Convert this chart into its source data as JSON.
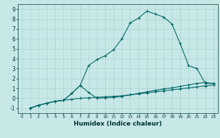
{
  "xlabel": "Humidex (Indice chaleur)",
  "background_color": "#c8e8e8",
  "line_color": "#006666",
  "xlim": [
    -0.5,
    23.5
  ],
  "ylim": [
    -1.5,
    9.5
  ],
  "line1_x": [
    1,
    2,
    3,
    4,
    5,
    6,
    7,
    8,
    9,
    10,
    11,
    12,
    13,
    14,
    15,
    16,
    17,
    18,
    19,
    20,
    21,
    22,
    23
  ],
  "line1_y": [
    -1,
    -0.7,
    -0.5,
    -0.3,
    -0.2,
    0.5,
    1.3,
    3.3,
    3.9,
    4.3,
    4.9,
    6.0,
    7.6,
    8.1,
    8.8,
    8.5,
    8.2,
    7.5,
    5.5,
    3.3,
    3.0,
    1.5,
    1.5
  ],
  "line2_x": [
    1,
    2,
    3,
    4,
    5,
    6,
    7,
    8,
    9,
    10,
    11,
    12,
    13,
    14,
    15,
    16,
    17,
    18,
    19,
    20,
    21,
    22,
    23
  ],
  "line2_y": [
    -1,
    -0.7,
    -0.5,
    -0.3,
    -0.2,
    0.5,
    1.3,
    0.6,
    0.0,
    0.05,
    0.1,
    0.2,
    0.35,
    0.5,
    0.65,
    0.8,
    0.95,
    1.05,
    1.2,
    1.35,
    1.5,
    1.6,
    1.5
  ],
  "line3_x": [
    1,
    2,
    3,
    4,
    5,
    6,
    7,
    8,
    9,
    10,
    11,
    12,
    13,
    14,
    15,
    16,
    17,
    18,
    19,
    20,
    21,
    22,
    23
  ],
  "line3_y": [
    -1,
    -0.7,
    -0.5,
    -0.3,
    -0.2,
    -0.1,
    0.0,
    0.05,
    0.1,
    0.15,
    0.2,
    0.25,
    0.35,
    0.45,
    0.55,
    0.65,
    0.75,
    0.85,
    0.95,
    1.05,
    1.15,
    1.25,
    1.35
  ]
}
